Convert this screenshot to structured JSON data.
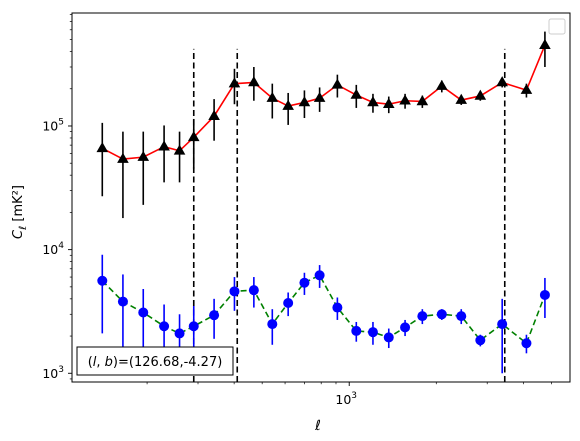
{
  "chart_data": {
    "type": "line",
    "xlabel": "ℓ",
    "ylabel": "C_ℓ [mK²]",
    "xscale": "log",
    "yscale": "log",
    "xlim": [
      110,
      5800
    ],
    "ylim": [
      850,
      820000
    ],
    "x_major_ticks": [
      {
        "value": 1000,
        "label": "10^3"
      }
    ],
    "y_major_ticks": [
      {
        "value": 1000,
        "label": "10^3"
      },
      {
        "value": 10000,
        "label": "10^4"
      },
      {
        "value": 100000,
        "label": "10^5"
      }
    ],
    "annotation": "(l,b)=(126.68,-4.27)",
    "legend": {
      "placement": "upper right",
      "entries": []
    },
    "vlines": [
      290,
      410,
      3450
    ],
    "vline_ylim": [
      850,
      420000
    ],
    "series": [
      {
        "marker": "triangle",
        "marker_color": "#000000",
        "line_color": "#ff0000",
        "line_style": "solid",
        "points": [
          {
            "x": 140,
            "y": 66000,
            "lo": 27000,
            "hi": 106000
          },
          {
            "x": 165,
            "y": 54000,
            "lo": 18000,
            "hi": 90000
          },
          {
            "x": 194,
            "y": 56000,
            "lo": 23000,
            "hi": 90000
          },
          {
            "x": 229,
            "y": 68000,
            "lo": 35000,
            "hi": 101000
          },
          {
            "x": 259,
            "y": 63000,
            "lo": 35000,
            "hi": 90000
          },
          {
            "x": 290,
            "y": 81000,
            "lo": 45000,
            "hi": 114000
          },
          {
            "x": 341,
            "y": 120000,
            "lo": 76000,
            "hi": 165000
          },
          {
            "x": 401,
            "y": 220000,
            "lo": 150000,
            "hi": 290000
          },
          {
            "x": 468,
            "y": 225000,
            "lo": 160000,
            "hi": 300000
          },
          {
            "x": 542,
            "y": 168000,
            "lo": 115000,
            "hi": 220000
          },
          {
            "x": 615,
            "y": 145000,
            "lo": 102000,
            "hi": 185000
          },
          {
            "x": 700,
            "y": 155000,
            "lo": 116000,
            "hi": 194000
          },
          {
            "x": 790,
            "y": 168000,
            "lo": 130000,
            "hi": 205000
          },
          {
            "x": 910,
            "y": 215000,
            "lo": 170000,
            "hi": 260000
          },
          {
            "x": 1058,
            "y": 178000,
            "lo": 140000,
            "hi": 215000
          },
          {
            "x": 1208,
            "y": 155000,
            "lo": 128000,
            "hi": 182000
          },
          {
            "x": 1370,
            "y": 150000,
            "lo": 127000,
            "hi": 173000
          },
          {
            "x": 1560,
            "y": 160000,
            "lo": 138000,
            "hi": 182000
          },
          {
            "x": 1790,
            "y": 158000,
            "lo": 140000,
            "hi": 176000
          },
          {
            "x": 2090,
            "y": 210000,
            "lo": 187000,
            "hi": 233000
          },
          {
            "x": 2440,
            "y": 162000,
            "lo": 148000,
            "hi": 176000
          },
          {
            "x": 2840,
            "y": 175000,
            "lo": 160000,
            "hi": 190000
          },
          {
            "x": 3380,
            "y": 225000,
            "lo": 205000,
            "hi": 245000
          },
          {
            "x": 4100,
            "y": 195000,
            "lo": 170000,
            "hi": 220000
          },
          {
            "x": 4750,
            "y": 450000,
            "lo": 300000,
            "hi": 580000
          }
        ]
      },
      {
        "marker": "circle",
        "marker_color": "#0000ff",
        "line_color": "#008000",
        "line_style": "dashed",
        "points": [
          {
            "x": 140,
            "y": 5600,
            "lo": 2100,
            "hi": 9100
          },
          {
            "x": 165,
            "y": 3800,
            "lo": 1300,
            "hi": 6300
          },
          {
            "x": 194,
            "y": 3100,
            "lo": 1400,
            "hi": 4800
          },
          {
            "x": 229,
            "y": 2400,
            "lo": 1200,
            "hi": 3600
          },
          {
            "x": 259,
            "y": 2100,
            "lo": 1200,
            "hi": 3000
          },
          {
            "x": 290,
            "y": 2400,
            "lo": 1300,
            "hi": 3500
          },
          {
            "x": 341,
            "y": 2950,
            "lo": 1900,
            "hi": 4000
          },
          {
            "x": 401,
            "y": 4600,
            "lo": 3200,
            "hi": 6000
          },
          {
            "x": 468,
            "y": 4700,
            "lo": 3400,
            "hi": 6000
          },
          {
            "x": 542,
            "y": 2500,
            "lo": 1700,
            "hi": 3300
          },
          {
            "x": 615,
            "y": 3700,
            "lo": 2900,
            "hi": 4500
          },
          {
            "x": 700,
            "y": 5400,
            "lo": 4300,
            "hi": 6500
          },
          {
            "x": 790,
            "y": 6200,
            "lo": 4900,
            "hi": 7500
          },
          {
            "x": 910,
            "y": 3400,
            "lo": 2700,
            "hi": 4100
          },
          {
            "x": 1058,
            "y": 2200,
            "lo": 1800,
            "hi": 2600
          },
          {
            "x": 1208,
            "y": 2150,
            "lo": 1700,
            "hi": 2600
          },
          {
            "x": 1370,
            "y": 1950,
            "lo": 1600,
            "hi": 2300
          },
          {
            "x": 1560,
            "y": 2350,
            "lo": 2000,
            "hi": 2700
          },
          {
            "x": 1790,
            "y": 2900,
            "lo": 2500,
            "hi": 3300
          },
          {
            "x": 2090,
            "y": 3000,
            "lo": 2700,
            "hi": 3300
          },
          {
            "x": 2440,
            "y": 2900,
            "lo": 2500,
            "hi": 3300
          },
          {
            "x": 2840,
            "y": 1850,
            "lo": 1650,
            "hi": 2050
          },
          {
            "x": 3380,
            "y": 2500,
            "lo": 1000,
            "hi": 4000
          },
          {
            "x": 4100,
            "y": 1750,
            "lo": 1450,
            "hi": 2050
          },
          {
            "x": 4750,
            "y": 4300,
            "lo": 2800,
            "hi": 5900
          }
        ]
      }
    ]
  }
}
